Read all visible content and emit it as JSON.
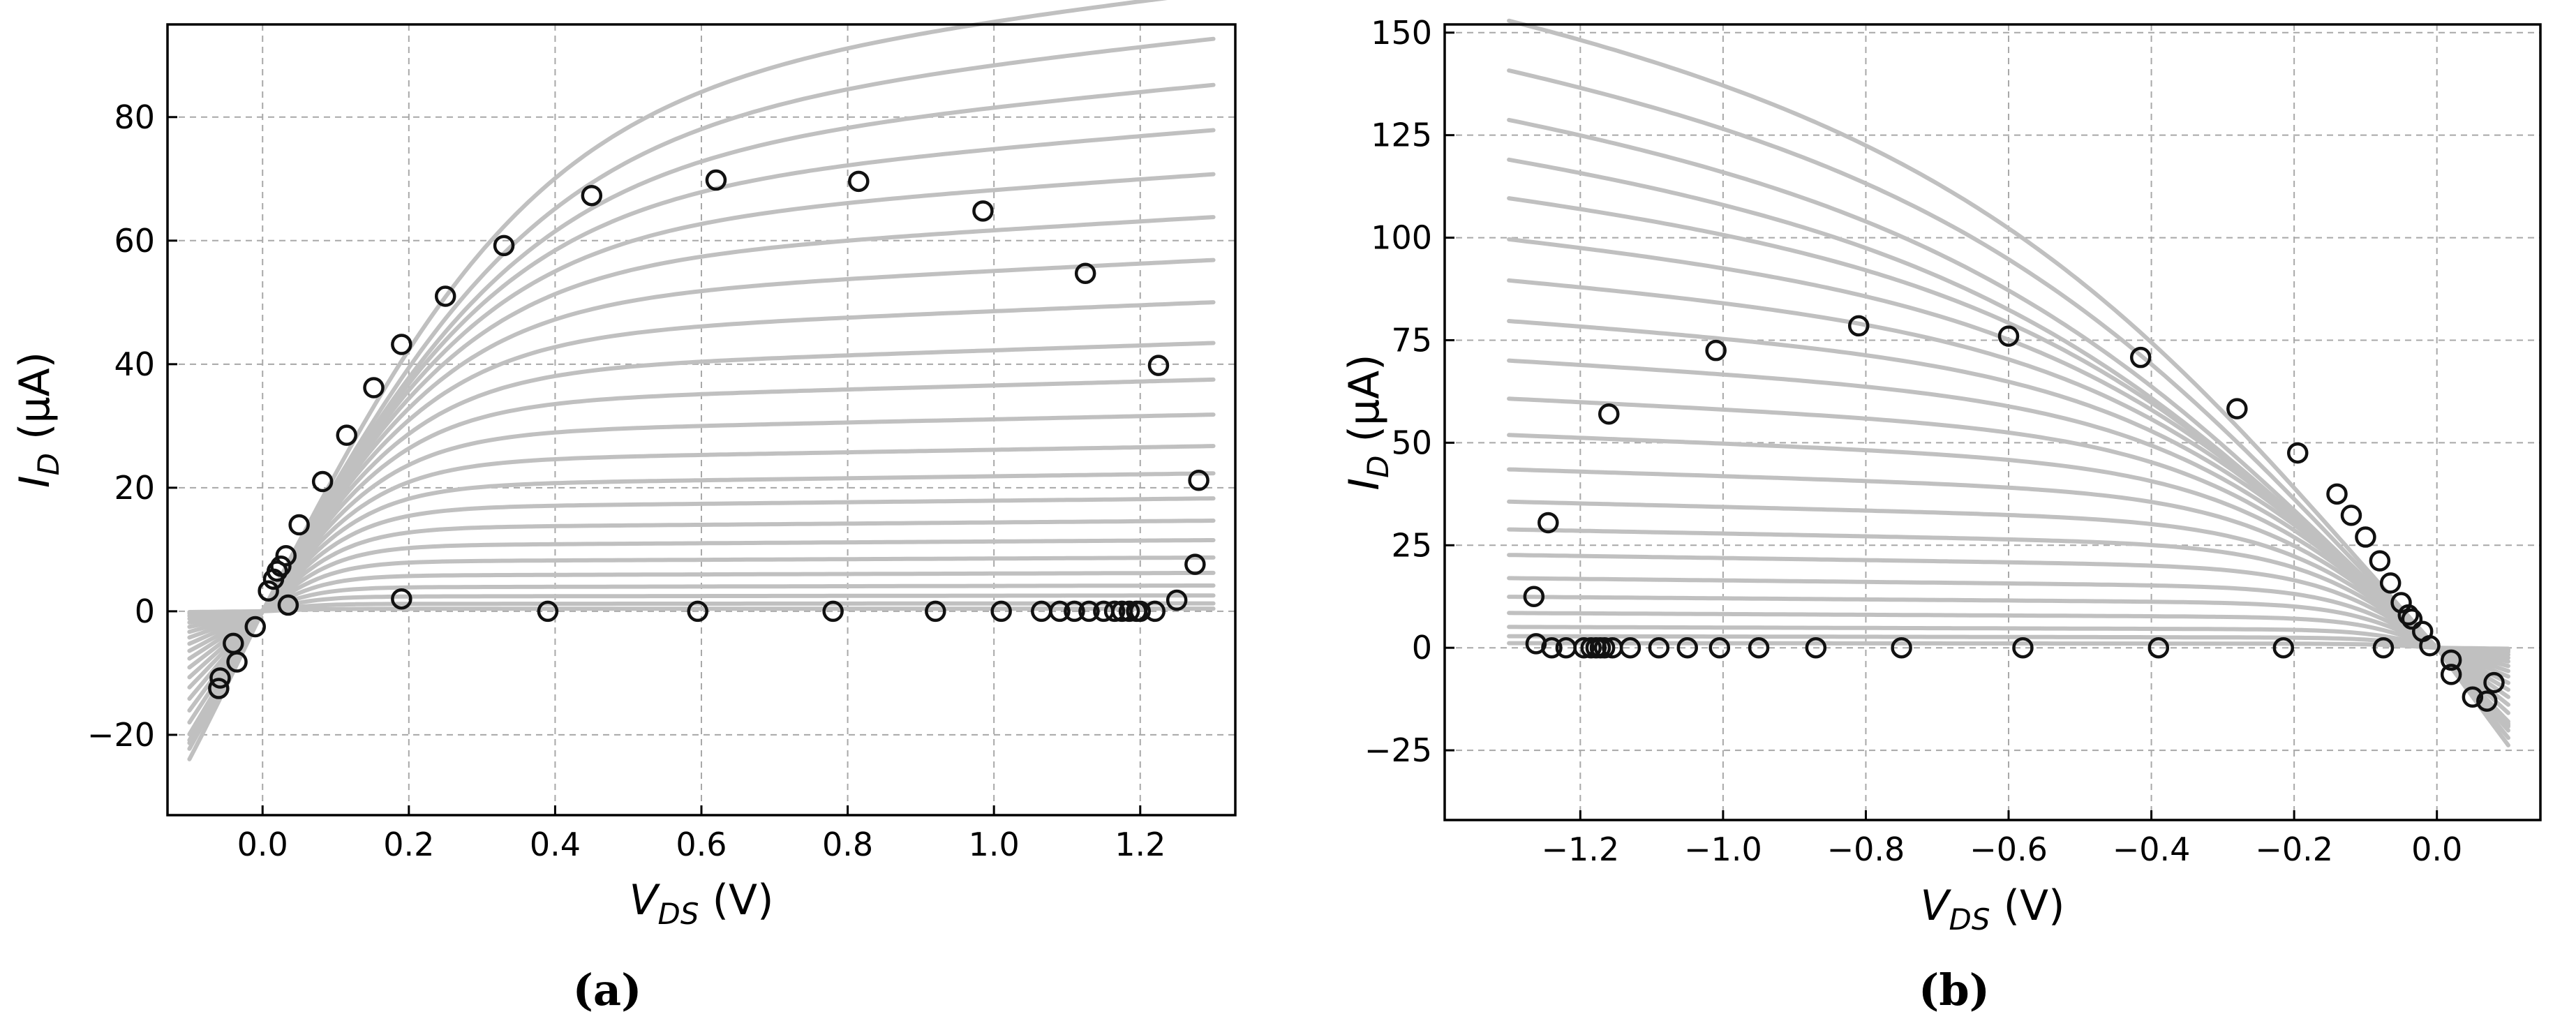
{
  "chart_data": [
    {
      "type": "line",
      "panel_label": "(a)",
      "xlabel": {
        "main": "V",
        "sub": "DS",
        "unit": " (V)"
      },
      "ylabel": {
        "main": "I",
        "sub": "D",
        "unit": " (μA)"
      },
      "xlim": [
        -0.13,
        1.33
      ],
      "ylim": [
        -33,
        95
      ],
      "xticks": [
        0.0,
        0.2,
        0.4,
        0.6,
        0.8,
        1.0,
        1.2
      ],
      "xtick_labels": [
        "0.0",
        "0.2",
        "0.4",
        "0.6",
        "0.8",
        "1.0",
        "1.2"
      ],
      "yticks": [
        -20,
        0,
        20,
        40,
        60,
        80
      ],
      "ytick_labels": [
        "−20",
        "0",
        "20",
        "40",
        "60",
        "80"
      ],
      "grid": true,
      "simulated_curves": {
        "color": "#c0c0c0",
        "x_range": [
          -0.1,
          1.3
        ],
        "saturation_currents": [
          90,
          83.6,
          77,
          70.4,
          64,
          57.8,
          51.6,
          45.5,
          39.6,
          34.3,
          29.2,
          24.6,
          20.6,
          16.9,
          13.6,
          10.7,
          8.1,
          5.8,
          3.9,
          2.4,
          1.2,
          0.4
        ]
      },
      "measured_points": [
        [
          -0.06,
          -12.5
        ],
        [
          -0.058,
          -10.8
        ],
        [
          -0.04,
          -5.2
        ],
        [
          -0.035,
          -8.2
        ],
        [
          -0.01,
          -2.5
        ],
        [
          0.008,
          3.3
        ],
        [
          0.015,
          5.2
        ],
        [
          0.02,
          6.5
        ],
        [
          0.025,
          7.3
        ],
        [
          0.032,
          9.0
        ],
        [
          0.035,
          1.0
        ],
        [
          0.05,
          14.0
        ],
        [
          0.082,
          21.0
        ],
        [
          0.115,
          28.5
        ],
        [
          0.152,
          36.2
        ],
        [
          0.19,
          43.2
        ],
        [
          0.19,
          2.0
        ],
        [
          0.25,
          51.0
        ],
        [
          0.33,
          59.2
        ],
        [
          0.39,
          0.0
        ],
        [
          0.45,
          67.3
        ],
        [
          0.595,
          0.0
        ],
        [
          0.62,
          69.8
        ],
        [
          0.78,
          0.0
        ],
        [
          0.815,
          69.6
        ],
        [
          0.92,
          0.0
        ],
        [
          0.985,
          64.8
        ],
        [
          1.01,
          0.0
        ],
        [
          1.065,
          0.0
        ],
        [
          1.09,
          0.0
        ],
        [
          1.11,
          0.0
        ],
        [
          1.125,
          54.7
        ],
        [
          1.13,
          0.0
        ],
        [
          1.15,
          0.0
        ],
        [
          1.165,
          0.0
        ],
        [
          1.175,
          0.0
        ],
        [
          1.185,
          0.0
        ],
        [
          1.195,
          0.0
        ],
        [
          1.2,
          0.0
        ],
        [
          1.22,
          0.0
        ],
        [
          1.225,
          39.8
        ],
        [
          1.25,
          1.8
        ],
        [
          1.275,
          7.6
        ],
        [
          1.28,
          21.2
        ]
      ]
    },
    {
      "type": "line",
      "panel_label": "(b)",
      "xlabel": {
        "main": "V",
        "sub": "DS",
        "unit": " (V)"
      },
      "ylabel": {
        "main": "I",
        "sub": "D",
        "unit": " (μA)"
      },
      "xlim": [
        -1.39,
        0.145
      ],
      "ylim": [
        -42,
        152
      ],
      "xticks": [
        -1.2,
        -1.0,
        -0.8,
        -0.6,
        -0.4,
        -0.2,
        0.0
      ],
      "xtick_labels": [
        "−1.2",
        "−1.0",
        "−0.8",
        "−0.6",
        "−0.4",
        "−0.2",
        "0.0"
      ],
      "yticks": [
        -25,
        0,
        25,
        50,
        75,
        100,
        125,
        150
      ],
      "ytick_labels": [
        "−25",
        "0",
        "25",
        "50",
        "75",
        "100",
        "125",
        "150"
      ],
      "grid": true,
      "simulated_curves": {
        "color": "#c0c0c0",
        "x_range": [
          -1.3,
          0.1
        ],
        "saturation_currents": [
          144,
          133,
          122,
          112,
          101.5,
          91,
          81,
          71.5,
          62.5,
          54,
          46,
          38.5,
          31.5,
          25.5,
          20,
          15,
          11,
          7.5,
          4.5,
          2.5,
          1.0
        ]
      },
      "measured_points": [
        [
          -1.265,
          12.5
        ],
        [
          -1.262,
          1.0
        ],
        [
          -1.245,
          30.5
        ],
        [
          -1.24,
          0.0
        ],
        [
          -1.22,
          0.0
        ],
        [
          -1.195,
          0.0
        ],
        [
          -1.185,
          0.0
        ],
        [
          -1.178,
          0.0
        ],
        [
          -1.172,
          0.0
        ],
        [
          -1.166,
          0.0
        ],
        [
          -1.16,
          57.0
        ],
        [
          -1.155,
          0.0
        ],
        [
          -1.13,
          0.0
        ],
        [
          -1.09,
          0.0
        ],
        [
          -1.05,
          0.0
        ],
        [
          -1.01,
          72.5
        ],
        [
          -1.005,
          0.0
        ],
        [
          -0.95,
          0.0
        ],
        [
          -0.87,
          0.0
        ],
        [
          -0.81,
          78.5
        ],
        [
          -0.75,
          0.0
        ],
        [
          -0.6,
          76.0
        ],
        [
          -0.58,
          0.0
        ],
        [
          -0.415,
          70.8
        ],
        [
          -0.39,
          0.0
        ],
        [
          -0.28,
          58.3
        ],
        [
          -0.215,
          0.0
        ],
        [
          -0.195,
          47.5
        ],
        [
          -0.14,
          37.5
        ],
        [
          -0.12,
          32.3
        ],
        [
          -0.1,
          27.0
        ],
        [
          -0.08,
          21.2
        ],
        [
          -0.065,
          15.8
        ],
        [
          -0.05,
          11.0
        ],
        [
          -0.04,
          8.0
        ],
        [
          -0.035,
          7.0
        ],
        [
          -0.02,
          4.0
        ],
        [
          -0.01,
          0.5
        ],
        [
          -0.075,
          0.0
        ],
        [
          0.02,
          -3.0
        ],
        [
          0.02,
          -6.5
        ],
        [
          0.05,
          -12.0
        ],
        [
          0.07,
          -13.0
        ],
        [
          0.08,
          -8.5
        ]
      ]
    }
  ]
}
